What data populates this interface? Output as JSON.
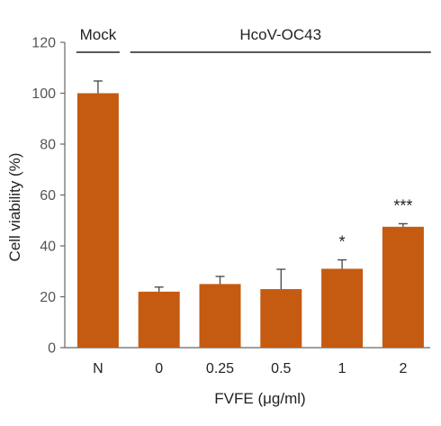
{
  "chart_data": {
    "type": "bar",
    "categories": [
      "N",
      "0",
      "0.25",
      "0.5",
      "1",
      "2"
    ],
    "values": [
      100,
      22,
      25,
      23,
      31,
      47.5
    ],
    "errors": [
      4.8,
      1.8,
      3,
      7.8,
      3.5,
      1.2
    ],
    "significance": [
      "",
      "",
      "",
      "",
      "*",
      "***"
    ],
    "ylabel": "Cell viability (%)",
    "xlabel": "FVFE (μg/ml)",
    "ylim": [
      0,
      120
    ],
    "yticks": [
      0,
      20,
      40,
      60,
      80,
      100,
      120
    ],
    "groups": [
      {
        "label": "Mock",
        "from": 0,
        "to": 0
      },
      {
        "label": "HcoV-OC43",
        "from": 1,
        "to": 5
      }
    ],
    "grid": false,
    "colors": {
      "bar": "#C55A11",
      "axis": "#666666",
      "error": "#444444"
    }
  }
}
